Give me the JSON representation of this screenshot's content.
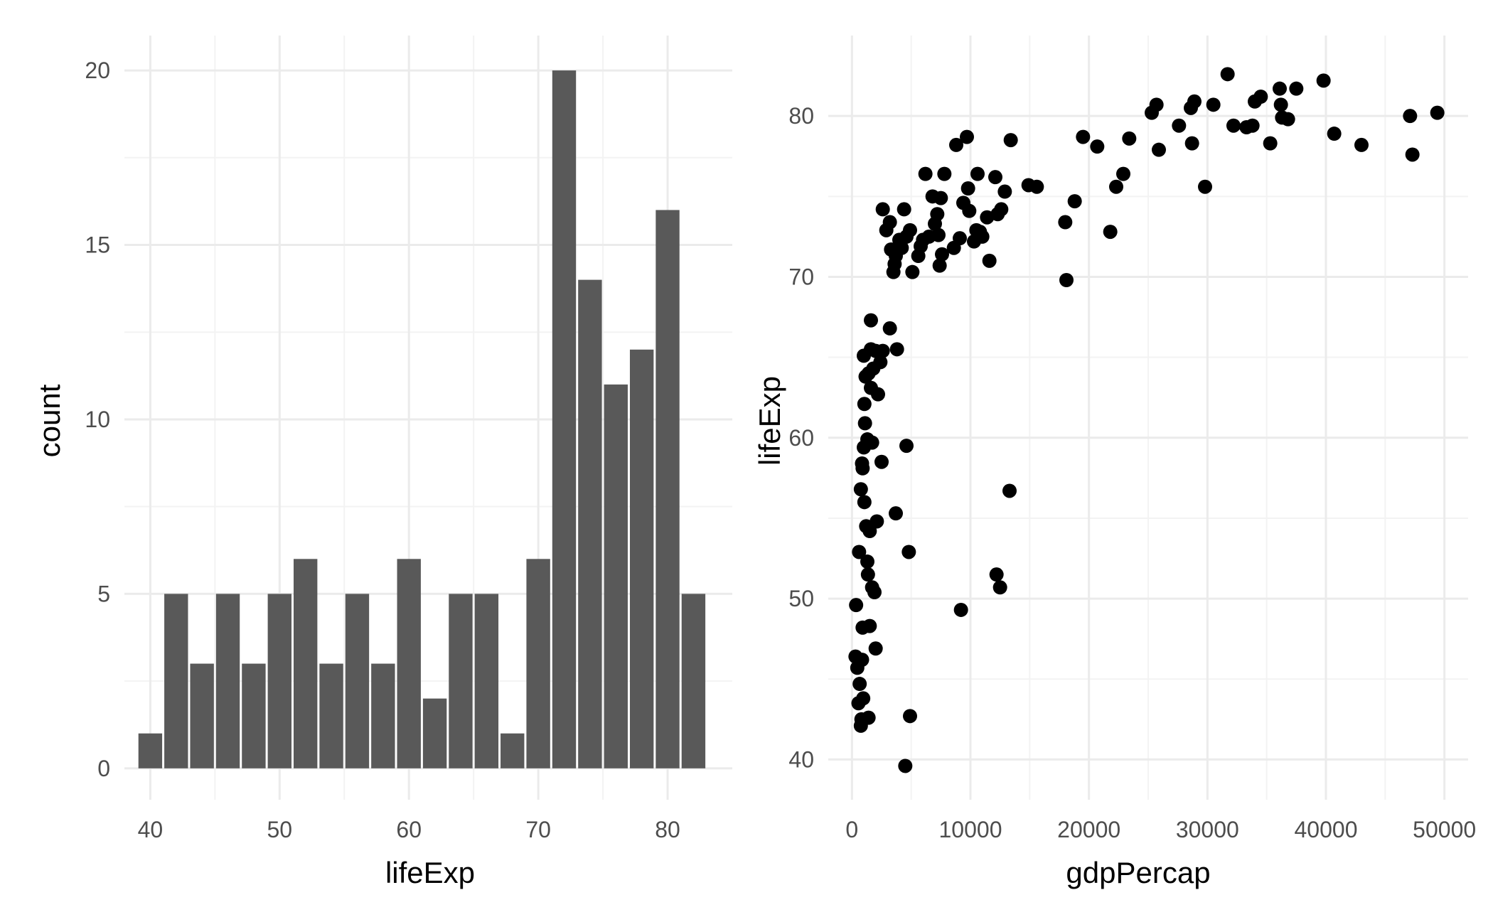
{
  "chart_data": [
    {
      "type": "bar",
      "xlabel": "lifeExp",
      "ylabel": "count",
      "xlim": [
        38,
        85
      ],
      "ylim": [
        -0.9,
        21
      ],
      "x_ticks": [
        40,
        50,
        60,
        70,
        80
      ],
      "y_ticks": [
        0,
        5,
        10,
        15,
        20
      ],
      "bin_width": 2,
      "bin_centers": [
        40,
        42,
        44,
        46,
        48,
        50,
        52,
        54,
        56,
        58,
        60,
        62,
        64,
        66,
        68,
        70,
        72,
        74,
        76,
        78,
        80,
        82
      ],
      "values": [
        1,
        5,
        3,
        5,
        3,
        5,
        6,
        3,
        5,
        3,
        6,
        2,
        5,
        5,
        1,
        6,
        20,
        14,
        11,
        12,
        16,
        5
      ],
      "bar_color": "#595959",
      "grid": true
    },
    {
      "type": "scatter",
      "xlabel": "gdpPercap",
      "ylabel": "lifeExp",
      "xlim": [
        -2000,
        52000
      ],
      "ylim": [
        37.5,
        85
      ],
      "x_ticks": [
        0,
        10000,
        20000,
        30000,
        40000,
        50000
      ],
      "y_ticks": [
        40,
        50,
        60,
        70,
        80
      ],
      "point_color": "#000000",
      "grid": true,
      "points": [
        [
          300,
          46.4
        ],
        [
          450,
          45.7
        ],
        [
          550,
          43.5
        ],
        [
          650,
          44.7
        ],
        [
          750,
          42.1
        ],
        [
          800,
          42.5
        ],
        [
          850,
          46.2
        ],
        [
          900,
          48.2
        ],
        [
          950,
          43.8
        ],
        [
          1400,
          42.6
        ],
        [
          1500,
          48.3
        ],
        [
          2000,
          46.9
        ],
        [
          350,
          49.6
        ],
        [
          600,
          52.9
        ],
        [
          750,
          56.8
        ],
        [
          900,
          58.1
        ],
        [
          1000,
          59.4
        ],
        [
          850,
          58.4
        ],
        [
          1050,
          56.0
        ],
        [
          1200,
          54.5
        ],
        [
          1300,
          52.3
        ],
        [
          1350,
          51.5
        ],
        [
          1500,
          54.2
        ],
        [
          1700,
          50.7
        ],
        [
          1900,
          50.4
        ],
        [
          2100,
          54.8
        ],
        [
          1100,
          60.9
        ],
        [
          1300,
          59.9
        ],
        [
          1700,
          59.7
        ],
        [
          1050,
          62.1
        ],
        [
          2500,
          58.5
        ],
        [
          3700,
          55.3
        ],
        [
          4600,
          59.5
        ],
        [
          4800,
          52.9
        ],
        [
          4900,
          42.7
        ],
        [
          4500,
          39.6
        ],
        [
          1000,
          65.1
        ],
        [
          1150,
          63.8
        ],
        [
          1400,
          64.0
        ],
        [
          1800,
          64.3
        ],
        [
          1600,
          63.1
        ],
        [
          2200,
          62.7
        ],
        [
          2400,
          64.7
        ],
        [
          1600,
          67.3
        ],
        [
          2000,
          65.4
        ],
        [
          1600,
          65.5
        ],
        [
          2600,
          65.4
        ],
        [
          3200,
          66.8
        ],
        [
          3800,
          65.5
        ],
        [
          9200,
          49.3
        ],
        [
          12200,
          51.5
        ],
        [
          12500,
          50.7
        ],
        [
          13300,
          56.7
        ],
        [
          2600,
          74.2
        ],
        [
          2900,
          72.9
        ],
        [
          3200,
          73.4
        ],
        [
          3300,
          71.7
        ],
        [
          3500,
          70.3
        ],
        [
          3600,
          70.8
        ],
        [
          3700,
          71.3
        ],
        [
          3900,
          71.7
        ],
        [
          4000,
          72.3
        ],
        [
          4200,
          71.8
        ],
        [
          4400,
          74.2
        ],
        [
          4600,
          72.5
        ],
        [
          4900,
          72.9
        ],
        [
          5100,
          70.3
        ],
        [
          5600,
          71.3
        ],
        [
          5800,
          71.9
        ],
        [
          6000,
          72.3
        ],
        [
          6200,
          76.4
        ],
        [
          6500,
          72.5
        ],
        [
          6800,
          75.0
        ],
        [
          7000,
          73.3
        ],
        [
          7200,
          73.9
        ],
        [
          7300,
          72.6
        ],
        [
          7400,
          70.7
        ],
        [
          7500,
          74.9
        ],
        [
          7800,
          76.4
        ],
        [
          7600,
          71.4
        ],
        [
          8600,
          71.8
        ],
        [
          8800,
          78.2
        ],
        [
          9100,
          72.4
        ],
        [
          9400,
          74.6
        ],
        [
          9800,
          75.5
        ],
        [
          9700,
          78.7
        ],
        [
          9900,
          74.1
        ],
        [
          10300,
          72.2
        ],
        [
          10500,
          72.9
        ],
        [
          10600,
          76.4
        ],
        [
          10800,
          72.8
        ],
        [
          11000,
          72.5
        ],
        [
          11400,
          73.7
        ],
        [
          11600,
          71.0
        ],
        [
          12100,
          76.2
        ],
        [
          12300,
          73.9
        ],
        [
          12600,
          74.2
        ],
        [
          12900,
          75.3
        ],
        [
          13400,
          78.5
        ],
        [
          14900,
          75.7
        ],
        [
          15600,
          75.6
        ],
        [
          18000,
          73.4
        ],
        [
          18100,
          69.8
        ],
        [
          18800,
          74.7
        ],
        [
          19500,
          78.7
        ],
        [
          20700,
          78.1
        ],
        [
          21800,
          72.8
        ],
        [
          22300,
          75.6
        ],
        [
          22900,
          76.4
        ],
        [
          23400,
          78.6
        ],
        [
          25300,
          80.2
        ],
        [
          25700,
          80.7
        ],
        [
          25900,
          77.9
        ],
        [
          27600,
          79.4
        ],
        [
          28600,
          80.5
        ],
        [
          28700,
          78.3
        ],
        [
          28900,
          80.9
        ],
        [
          29800,
          75.6
        ],
        [
          30500,
          80.7
        ],
        [
          31700,
          82.6
        ],
        [
          32200,
          79.4
        ],
        [
          33300,
          79.3
        ],
        [
          33800,
          79.4
        ],
        [
          34000,
          80.9
        ],
        [
          34500,
          81.2
        ],
        [
          35300,
          78.3
        ],
        [
          36100,
          81.7
        ],
        [
          36200,
          80.7
        ],
        [
          36300,
          79.9
        ],
        [
          36800,
          79.8
        ],
        [
          37500,
          81.7
        ],
        [
          39800,
          82.2
        ],
        [
          40700,
          78.9
        ],
        [
          43000,
          78.2
        ],
        [
          47100,
          80.0
        ],
        [
          47300,
          77.6
        ],
        [
          49400,
          80.2
        ]
      ]
    }
  ]
}
